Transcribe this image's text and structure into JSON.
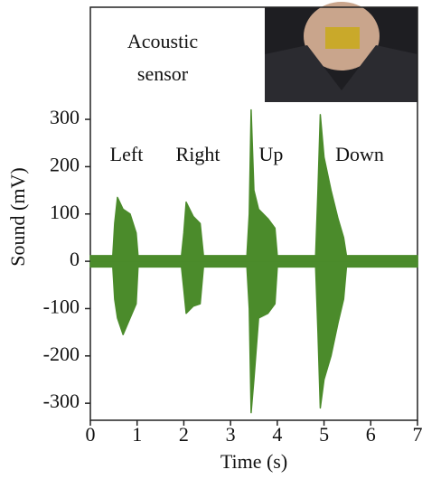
{
  "chart_data": {
    "type": "area",
    "x_label": "Time (s)",
    "y_label": "Sound (mV)",
    "annotations": [
      "Acoustic",
      "sensor",
      "Left",
      "Right",
      "Up",
      "Down"
    ],
    "x": [
      0,
      0.48,
      0.52,
      0.58,
      0.7,
      0.85,
      0.98,
      1.02,
      1.95,
      2.0,
      2.05,
      2.2,
      2.35,
      2.42,
      3.35,
      3.4,
      3.44,
      3.5,
      3.6,
      3.8,
      3.95,
      4.0,
      4.82,
      4.87,
      4.92,
      5.0,
      5.15,
      5.3,
      5.42,
      5.48,
      7
    ],
    "series": [
      {
        "color": "#4b8b2b",
        "values": [
          12,
          12,
          80,
          135,
          110,
          100,
          60,
          12,
          12,
          60,
          125,
          95,
          80,
          12,
          12,
          100,
          320,
          150,
          110,
          90,
          70,
          12,
          12,
          150,
          310,
          220,
          150,
          90,
          50,
          12,
          12
        ]
      },
      {
        "color": "#4b8b2b",
        "values": [
          -12,
          -12,
          -80,
          -120,
          -155,
          -120,
          -90,
          -12,
          -12,
          -60,
          -110,
          -95,
          -90,
          -12,
          -12,
          -100,
          -320,
          -250,
          -120,
          -110,
          -90,
          -12,
          -12,
          -150,
          -310,
          -250,
          -200,
          -130,
          -80,
          -12,
          -12
        ]
      }
    ],
    "xlim": [
      0,
      7
    ],
    "xticks": [
      0,
      1,
      2,
      3,
      4,
      5,
      6,
      7
    ],
    "ylim": [
      -336,
      537
    ],
    "yticks": [
      -300,
      -200,
      -100,
      0,
      100,
      200,
      300
    ]
  }
}
